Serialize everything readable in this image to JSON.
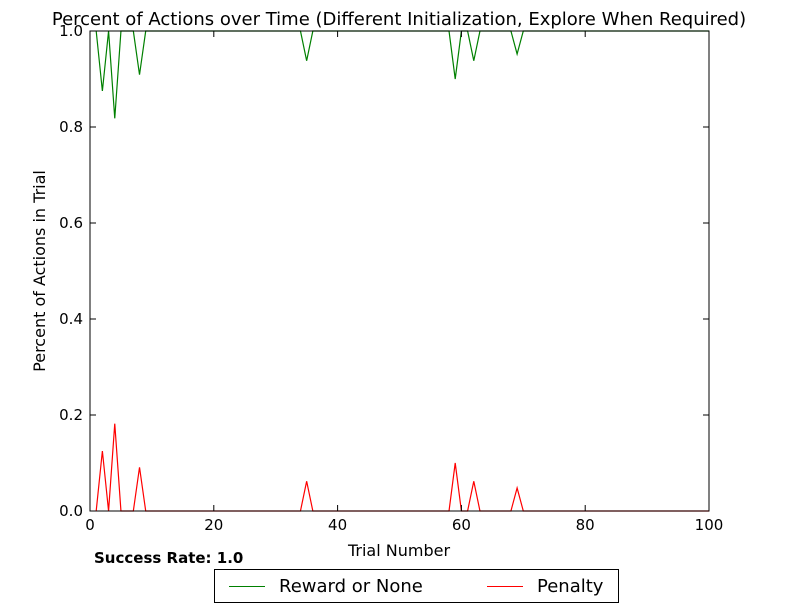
{
  "chart_data": {
    "type": "line",
    "title": "Percent of Actions over Time (Different Initialization, Explore When Required)",
    "xlabel": "Trial Number",
    "ylabel": "Percent of Actions in Trial",
    "xlim": [
      0,
      100
    ],
    "ylim": [
      0,
      1.0
    ],
    "xticks": [
      "0",
      "20",
      "40",
      "60",
      "80",
      "100"
    ],
    "yticks": [
      "0.0",
      "0.2",
      "0.4",
      "0.6",
      "0.8",
      "1.0"
    ],
    "grid": false,
    "legend_position": "bottom-center",
    "x": [
      1,
      2,
      3,
      4,
      5,
      6,
      7,
      8,
      9,
      10,
      11,
      12,
      13,
      14,
      15,
      16,
      17,
      18,
      19,
      20,
      21,
      22,
      23,
      24,
      25,
      26,
      27,
      28,
      29,
      30,
      31,
      32,
      33,
      34,
      35,
      36,
      37,
      38,
      39,
      40,
      41,
      42,
      43,
      44,
      45,
      46,
      47,
      48,
      49,
      50,
      51,
      52,
      53,
      54,
      55,
      56,
      57,
      58,
      59,
      60,
      61,
      62,
      63,
      64,
      65,
      66,
      67,
      68,
      69,
      70,
      71,
      72,
      73,
      74,
      75,
      76,
      77,
      78,
      79,
      80,
      81,
      82,
      83,
      84,
      85,
      86,
      87,
      88,
      89,
      90,
      91,
      92,
      93,
      94,
      95,
      96,
      97,
      98,
      99,
      100
    ],
    "series": [
      {
        "name": "Reward or None",
        "color": "#008000",
        "values": [
          1.0,
          0.875,
          1.0,
          0.818,
          1.0,
          1.0,
          1.0,
          0.909,
          1.0,
          1.0,
          1.0,
          1.0,
          1.0,
          1.0,
          1.0,
          1.0,
          1.0,
          1.0,
          1.0,
          1.0,
          1.0,
          1.0,
          1.0,
          1.0,
          1.0,
          1.0,
          1.0,
          1.0,
          1.0,
          1.0,
          1.0,
          1.0,
          1.0,
          1.0,
          0.938,
          1.0,
          1.0,
          1.0,
          1.0,
          1.0,
          1.0,
          1.0,
          1.0,
          1.0,
          1.0,
          1.0,
          1.0,
          1.0,
          1.0,
          1.0,
          1.0,
          1.0,
          1.0,
          1.0,
          1.0,
          1.0,
          1.0,
          1.0,
          0.9,
          1.0,
          1.0,
          0.938,
          1.0,
          1.0,
          1.0,
          1.0,
          1.0,
          1.0,
          0.952,
          1.0,
          1.0,
          1.0,
          1.0,
          1.0,
          1.0,
          1.0,
          1.0,
          1.0,
          1.0,
          1.0,
          1.0,
          1.0,
          1.0,
          1.0,
          1.0,
          1.0,
          1.0,
          1.0,
          1.0,
          1.0,
          1.0,
          1.0,
          1.0,
          1.0,
          1.0,
          1.0,
          1.0,
          1.0,
          1.0,
          1.0
        ]
      },
      {
        "name": "Penalty",
        "color": "#ff0000",
        "values": [
          0.0,
          0.125,
          0.0,
          0.182,
          0.0,
          0.0,
          0.0,
          0.091,
          0.0,
          0.0,
          0.0,
          0.0,
          0.0,
          0.0,
          0.0,
          0.0,
          0.0,
          0.0,
          0.0,
          0.0,
          0.0,
          0.0,
          0.0,
          0.0,
          0.0,
          0.0,
          0.0,
          0.0,
          0.0,
          0.0,
          0.0,
          0.0,
          0.0,
          0.0,
          0.062,
          0.0,
          0.0,
          0.0,
          0.0,
          0.0,
          0.0,
          0.0,
          0.0,
          0.0,
          0.0,
          0.0,
          0.0,
          0.0,
          0.0,
          0.0,
          0.0,
          0.0,
          0.0,
          0.0,
          0.0,
          0.0,
          0.0,
          0.0,
          0.1,
          0.0,
          0.0,
          0.062,
          0.0,
          0.0,
          0.0,
          0.0,
          0.0,
          0.0,
          0.048,
          0.0,
          0.0,
          0.0,
          0.0,
          0.0,
          0.0,
          0.0,
          0.0,
          0.0,
          0.0,
          0.0,
          0.0,
          0.0,
          0.0,
          0.0,
          0.0,
          0.0,
          0.0,
          0.0,
          0.0,
          0.0,
          0.0,
          0.0,
          0.0,
          0.0,
          0.0,
          0.0,
          0.0,
          0.0,
          0.0,
          0.0
        ]
      }
    ]
  },
  "annotation": {
    "success_rate": "Success Rate: 1.0"
  },
  "legend": {
    "items": [
      {
        "label": "Reward or None",
        "color": "#008000"
      },
      {
        "label": "Penalty",
        "color": "#ff0000"
      }
    ]
  }
}
